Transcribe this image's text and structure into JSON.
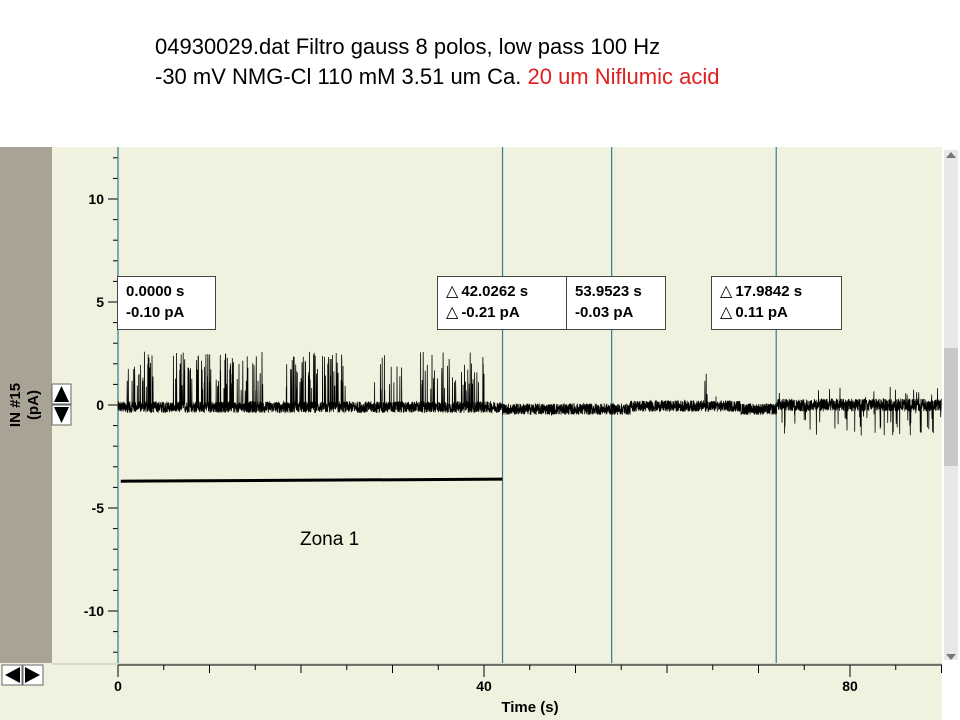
{
  "title": {
    "line1": "04930029.dat Filtro gauss 8 polos, low pass 100 Hz",
    "line2_black": "-30 mV NMG-Cl 110 mM 3.51 um Ca.",
    "line2_red": "20 um Niflumic acid"
  },
  "colors": {
    "red_text": "#e02020",
    "cursor_line": "#2c7f8f",
    "plot_bg": "#f1f1df",
    "y_panel": "#a8a395",
    "trace": "#000000"
  },
  "cursors": [
    {
      "lines": [
        "0.0000 s",
        "-0.10 pA"
      ],
      "delta": [
        false,
        false
      ]
    },
    {
      "lines": [
        "42.0262 s",
        "-0.21 pA"
      ],
      "delta": [
        true,
        true
      ]
    },
    {
      "lines": [
        "53.9523 s",
        "-0.03 pA"
      ],
      "delta": [
        false,
        false
      ]
    },
    {
      "lines": [
        "17.9842 s",
        "0.11 pA"
      ],
      "delta": [
        true,
        true
      ]
    }
  ],
  "zona_label": "Zona 1",
  "chart_data": {
    "type": "line",
    "title": "",
    "xlabel": "Time (s)",
    "ylabel_line1": "IN #15",
    "ylabel_line2": "(pA)",
    "xlim": [
      0,
      90
    ],
    "ylim": [
      -12.5,
      12.5
    ],
    "xticks": [
      0,
      40,
      80
    ],
    "xtick_labels": [
      "0",
      "40",
      "80"
    ],
    "yticks": [
      10,
      5,
      0,
      -5,
      -10
    ],
    "ytick_labels": [
      "10",
      "5",
      "0",
      "-5",
      "-10"
    ],
    "cursor_positions_s": [
      0,
      42.0262,
      53.9523,
      71.9365
    ],
    "zone": {
      "x_start": 0.3,
      "x_end": 42.0,
      "y_start": -3.7,
      "y_end": -3.6
    },
    "series": [
      {
        "description_segments": [
          {
            "x_range": [
              0,
              42
            ],
            "baseline": -0.1,
            "openings_to_pA": 2.5
          },
          {
            "x_range": [
              42,
              72
            ],
            "baseline": -0.2,
            "openings_to_pA": 1.8
          },
          {
            "x_range": [
              72,
              90
            ],
            "baseline": 0.0,
            "closings_to_pA": -1.5
          }
        ]
      }
    ]
  }
}
